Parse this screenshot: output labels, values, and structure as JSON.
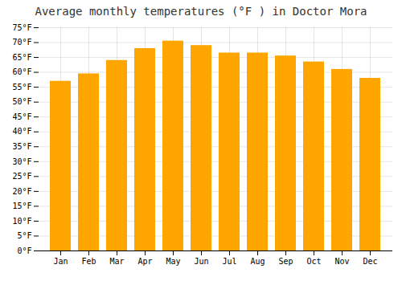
{
  "chart_data": {
    "type": "bar",
    "title": "Average monthly temperatures (°F ) in Doctor Mora",
    "categories": [
      "Jan",
      "Feb",
      "Mar",
      "Apr",
      "May",
      "Jun",
      "Jul",
      "Aug",
      "Sep",
      "Oct",
      "Nov",
      "Dec"
    ],
    "values": [
      57,
      59.5,
      64,
      68,
      70.5,
      69,
      66.5,
      66.5,
      65.5,
      63.5,
      61,
      58
    ],
    "color": "#FFA500",
    "ylim": [
      0,
      75
    ],
    "yticks": [
      {
        "value": 0,
        "label": "0°F"
      },
      {
        "value": 5,
        "label": "5°F"
      },
      {
        "value": 10,
        "label": "10°F"
      },
      {
        "value": 15,
        "label": "15°F"
      },
      {
        "value": 20,
        "label": "20°F"
      },
      {
        "value": 25,
        "label": "25°F"
      },
      {
        "value": 30,
        "label": "30°F"
      },
      {
        "value": 35,
        "label": "35°F"
      },
      {
        "value": 40,
        "label": "40°F"
      },
      {
        "value": 45,
        "label": "45°F"
      },
      {
        "value": 50,
        "label": "50°F"
      },
      {
        "value": 55,
        "label": "55°F"
      },
      {
        "value": 60,
        "label": "60°F"
      },
      {
        "value": 65,
        "label": "65°F"
      },
      {
        "value": 70,
        "label": "70°F"
      },
      {
        "value": 75,
        "label": "75°F"
      }
    ],
    "grid": true
  }
}
